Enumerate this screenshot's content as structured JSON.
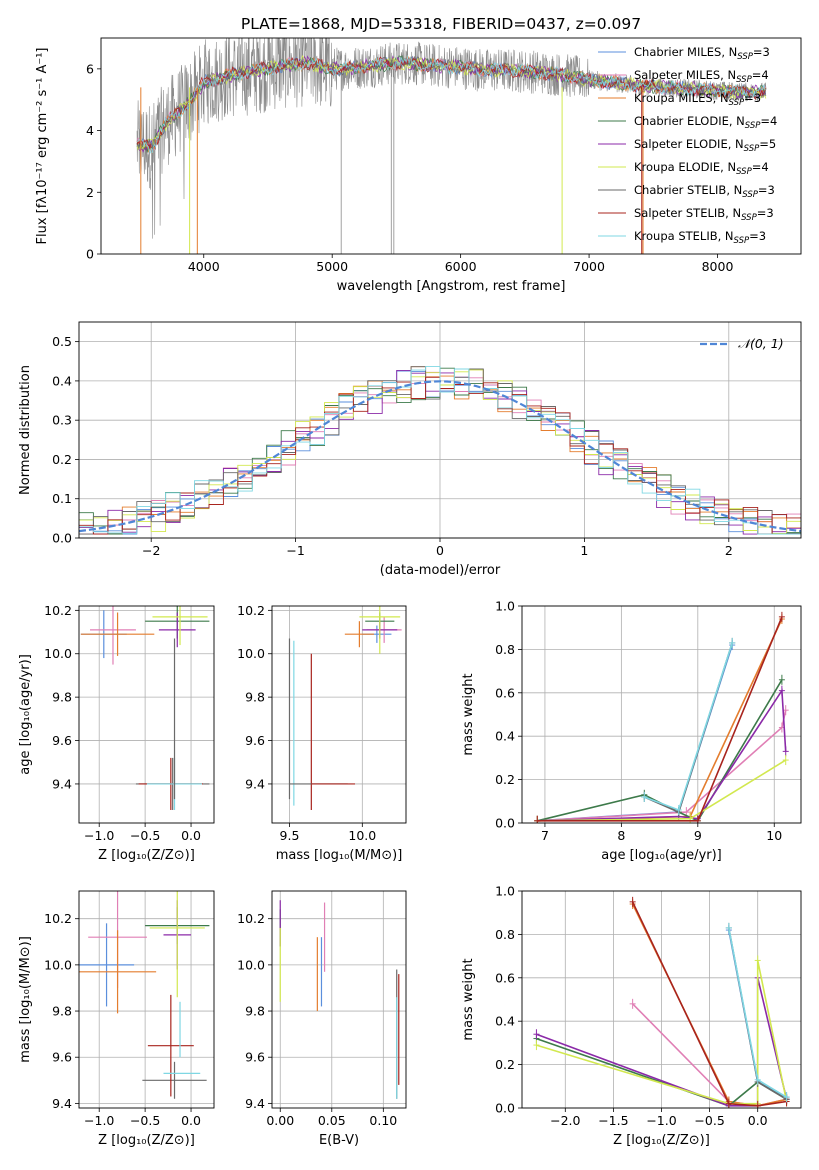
{
  "title": "PLATE=1868, MJD=53318, FIBERID=0437, z=0.097",
  "colors": {
    "Chabrier MILES": "#5b8fdc",
    "Salpeter MILES": "#e07fb5",
    "Kroupa MILES": "#e47d2e",
    "Chabrier ELODIE": "#3d7a4a",
    "Salpeter ELODIE": "#8b2aa8",
    "Kroupa ELODIE": "#d2e84f",
    "Chabrier STELIB": "#6a6a6a",
    "Salpeter STELIB": "#a8241e",
    "Kroupa STELIB": "#7fd7e3",
    "grid": "#b0b0b0",
    "gauss": "#4f86d6"
  },
  "chart_data": [
    {
      "id": "spectrum",
      "type": "line",
      "xlabel": "wavelength [Angstrom, rest frame]",
      "ylabel": "Flux [fλ10⁻¹⁷ erg cm⁻² s⁻¹ A⁻¹]",
      "xlim": [
        3200,
        8650
      ],
      "ylim": [
        0,
        7.0
      ],
      "xticks": [
        4000,
        5000,
        6000,
        7000,
        8000
      ],
      "yticks": [
        0,
        2,
        4,
        6
      ],
      "legend_position": "right",
      "legend": [
        "Chabrier MILES, N_SSP=3",
        "Salpeter MILES, N_SSP=4",
        "Kroupa MILES, N_SSP=3",
        "Chabrier ELODIE, N_SSP=4",
        "Salpeter ELODIE, N_SSP=5",
        "Kroupa ELODIE, N_SSP=4",
        "Chabrier STELIB, N_SSP=3",
        "Salpeter STELIB, N_SSP=3",
        "Kroupa STELIB, N_SSP=3"
      ],
      "model_continuum": {
        "x": [
          3500,
          3600,
          3700,
          3800,
          3900,
          4000,
          4200,
          4400,
          4600,
          4800,
          5000,
          5200,
          5400,
          5600,
          5800,
          6000,
          6200,
          6400,
          6600,
          6800,
          7000,
          7200,
          7400,
          7600,
          7800,
          8000,
          8200,
          8300
        ],
        "y": [
          3.55,
          3.5,
          4.2,
          4.6,
          5.0,
          5.55,
          5.8,
          5.95,
          6.1,
          6.2,
          6.0,
          6.05,
          6.15,
          6.2,
          6.1,
          6.05,
          5.95,
          5.95,
          5.9,
          5.8,
          5.65,
          5.55,
          5.45,
          5.4,
          5.35,
          5.3,
          5.25,
          5.25
        ]
      }
    },
    {
      "id": "residuals",
      "type": "step",
      "xlabel": "(data-model)/error",
      "ylabel": "Normed distribution",
      "xlim": [
        -2.5,
        2.5
      ],
      "ylim": [
        0,
        0.55
      ],
      "xticks": [
        -2,
        -1,
        0,
        1,
        2
      ],
      "yticks": [
        0.0,
        0.1,
        0.2,
        0.3,
        0.4,
        0.5
      ],
      "legend": [
        "𝒩(0, 1)"
      ],
      "legend_position": "top-right",
      "bin_width": 0.1
    },
    {
      "id": "age-vs-Z",
      "type": "errorbar",
      "xlabel": "Z [log₁₀(Z/Z⊙)]",
      "ylabel": "age  [log₁₀(age/yr)]",
      "xlim": [
        -1.22,
        0.25
      ],
      "ylim": [
        9.22,
        10.22
      ],
      "xticks": [
        -1.0,
        -0.5,
        0.0
      ],
      "yticks": [
        9.4,
        9.6,
        9.8,
        10.0,
        10.2
      ],
      "points": [
        {
          "model": "Chabrier MILES",
          "x": -0.95,
          "y": 10.09,
          "xerr": 0.25,
          "yerr": 0.11
        },
        {
          "model": "Salpeter MILES",
          "x": -0.85,
          "y": 10.11,
          "xerr": 0.25,
          "yerr": 0.16
        },
        {
          "model": "Kroupa MILES",
          "x": -0.8,
          "y": 10.09,
          "xerr": 0.4,
          "yerr": 0.1
        },
        {
          "model": "Chabrier ELODIE",
          "x": -0.15,
          "y": 10.15,
          "xerr": 0.35,
          "yerr": 0.08
        },
        {
          "model": "Salpeter ELODIE",
          "x": -0.15,
          "y": 10.11,
          "xerr": 0.2,
          "yerr": 0.08
        },
        {
          "model": "Kroupa ELODIE",
          "x": -0.12,
          "y": 10.17,
          "xerr": 0.3,
          "yerr": 0.13
        },
        {
          "model": "Chabrier STELIB",
          "x": -0.2,
          "y": 9.4,
          "xerr": 0.4,
          "yerr": 0.12
        },
        {
          "model": "Salpeter STELIB",
          "x": -0.22,
          "y": 9.4,
          "xerr": 0.35,
          "yerr": 0.12
        },
        {
          "model": "Kroupa STELIB",
          "x": -0.18,
          "y": 9.4,
          "xerr": 0.3,
          "yerr": 0.12
        },
        {
          "model": "Chabrier STELIB",
          "x": -0.18,
          "y": 9.7,
          "xerr": 0.0,
          "yerr": 0.37
        }
      ]
    },
    {
      "id": "age-vs-mass",
      "type": "errorbar",
      "xlabel": "mass [log₁₀(M/M⊙)]",
      "ylabel": "",
      "xlim": [
        9.38,
        10.3
      ],
      "ylim": [
        9.22,
        10.22
      ],
      "xticks": [
        9.5,
        10.0
      ],
      "yticks": [
        9.4,
        9.6,
        9.8,
        10.0,
        10.2
      ],
      "points": [
        {
          "model": "Chabrier MILES",
          "x": 10.1,
          "y": 10.09,
          "xerr": 0.1,
          "yerr": 0.04
        },
        {
          "model": "Salpeter MILES",
          "x": 10.15,
          "y": 10.11,
          "xerr": 0.12,
          "yerr": 0.06
        },
        {
          "model": "Kroupa MILES",
          "x": 9.98,
          "y": 10.09,
          "xerr": 0.1,
          "yerr": 0.06
        },
        {
          "model": "Chabrier ELODIE",
          "x": 10.12,
          "y": 10.15,
          "xerr": 0.1,
          "yerr": 0.04
        },
        {
          "model": "Salpeter ELODIE",
          "x": 10.12,
          "y": 10.11,
          "xerr": 0.12,
          "yerr": 0.04
        },
        {
          "model": "Kroupa ELODIE",
          "x": 10.12,
          "y": 10.17,
          "xerr": 0.14,
          "yerr": 0.17
        },
        {
          "model": "Chabrier STELIB",
          "x": 9.5,
          "y": 9.7,
          "xerr": 0.0,
          "yerr": 0.37
        },
        {
          "model": "Salpeter STELIB",
          "x": 9.65,
          "y": 9.64,
          "xerr": 0.0,
          "yerr": 0.36
        },
        {
          "model": "Kroupa STELIB",
          "x": 9.53,
          "y": 9.68,
          "xerr": 0.0,
          "yerr": 0.38
        },
        {
          "model": "Chabrier STELIB",
          "x": 9.7,
          "y": 9.4,
          "xerr": 0.2,
          "yerr": 0.0
        },
        {
          "model": "Salpeter STELIB",
          "x": 9.8,
          "y": 9.4,
          "xerr": 0.15,
          "yerr": 0.0
        }
      ]
    },
    {
      "id": "mass-weight-vs-age",
      "type": "line",
      "xlabel": "age  [log₁₀(age/yr)]",
      "ylabel": "mass weight",
      "xlim": [
        6.7,
        10.35
      ],
      "ylim": [
        0,
        1.0
      ],
      "xticks": [
        7,
        8,
        9,
        10
      ],
      "yticks": [
        0.0,
        0.2,
        0.4,
        0.6,
        0.8,
        1.0
      ],
      "series": [
        {
          "model": "Chabrier MILES",
          "x": [
            6.9,
            8.75,
            9.45
          ],
          "y": [
            0.01,
            0.05,
            0.82
          ]
        },
        {
          "model": "Salpeter MILES",
          "x": [
            6.9,
            8.85,
            10.1,
            10.15
          ],
          "y": [
            0.01,
            0.05,
            0.44,
            0.52
          ]
        },
        {
          "model": "Kroupa MILES",
          "x": [
            6.9,
            8.9,
            10.1
          ],
          "y": [
            0.01,
            0.03,
            0.94
          ]
        },
        {
          "model": "Chabrier ELODIE",
          "x": [
            6.9,
            8.3,
            8.75,
            9.0,
            10.1
          ],
          "y": [
            0.01,
            0.13,
            0.05,
            0.01,
            0.66
          ]
        },
        {
          "model": "Salpeter ELODIE",
          "x": [
            6.9,
            8.75,
            9.0,
            10.1,
            10.15
          ],
          "y": [
            0.01,
            0.03,
            0.02,
            0.61,
            0.33
          ]
        },
        {
          "model": "Kroupa ELODIE",
          "x": [
            6.9,
            8.9,
            10.15
          ],
          "y": [
            0.01,
            0.02,
            0.29
          ]
        },
        {
          "model": "Chabrier STELIB",
          "x": [
            8.3,
            8.75,
            9.45
          ],
          "y": [
            0.12,
            0.05,
            0.83
          ]
        },
        {
          "model": "Salpeter STELIB",
          "x": [
            6.9,
            9.0,
            10.1
          ],
          "y": [
            0.01,
            0.01,
            0.95
          ]
        },
        {
          "model": "Kroupa STELIB",
          "x": [
            8.3,
            8.75,
            9.45
          ],
          "y": [
            0.12,
            0.06,
            0.83
          ]
        }
      ]
    },
    {
      "id": "mass-vs-Z",
      "type": "errorbar",
      "xlabel": "Z [log₁₀(Z/Z⊙)]",
      "ylabel": "mass [log₁₀(M/M⊙)]",
      "xlim": [
        -1.22,
        0.25
      ],
      "ylim": [
        9.38,
        10.32
      ],
      "xticks": [
        -1.0,
        -0.5,
        0.0
      ],
      "yticks": [
        9.4,
        9.6,
        9.8,
        10.0,
        10.2
      ],
      "points": [
        {
          "model": "Chabrier MILES",
          "x": -0.92,
          "y": 10.0,
          "xerr": 0.3,
          "yerr": 0.18
        },
        {
          "model": "Salpeter MILES",
          "x": -0.8,
          "y": 10.12,
          "xerr": 0.32,
          "yerr": 0.22
        },
        {
          "model": "Kroupa MILES",
          "x": -0.8,
          "y": 9.97,
          "xerr": 0.42,
          "yerr": 0.18
        },
        {
          "model": "Chabrier ELODIE",
          "x": -0.15,
          "y": 10.17,
          "xerr": 0.35,
          "yerr": 0.08
        },
        {
          "model": "Salpeter ELODIE",
          "x": -0.15,
          "y": 10.13,
          "xerr": 0.15,
          "yerr": 0.15
        },
        {
          "model": "Kroupa ELODIE",
          "x": -0.15,
          "y": 10.16,
          "xerr": 0.3,
          "yerr": 0.3
        },
        {
          "model": "Chabrier STELIB",
          "x": -0.18,
          "y": 9.5,
          "xerr": 0.35,
          "yerr": 0.08
        },
        {
          "model": "Salpeter STELIB",
          "x": -0.22,
          "y": 9.65,
          "xerr": 0.25,
          "yerr": 0.22
        },
        {
          "model": "Kroupa STELIB",
          "x": -0.1,
          "y": 9.53,
          "xerr": 0.2,
          "yerr": 0.0
        },
        {
          "model": "Kroupa STELIB",
          "x": -0.12,
          "y": 9.72,
          "xerr": 0.0,
          "yerr": 0.12
        }
      ]
    },
    {
      "id": "mass-vs-ebv",
      "type": "errorbar",
      "xlabel": "E(B-V)",
      "ylabel": "",
      "xlim": [
        -0.008,
        0.122
      ],
      "ylim": [
        9.38,
        10.32
      ],
      "xticks": [
        0.0,
        0.05,
        0.1
      ],
      "yticks": [
        9.4,
        9.6,
        9.8,
        10.0,
        10.2
      ],
      "points": [
        {
          "model": "Chabrier MILES",
          "x": 0.04,
          "y": 9.97,
          "xerr": 0.0,
          "yerr": 0.15
        },
        {
          "model": "Salpeter MILES",
          "x": 0.043,
          "y": 10.12,
          "xerr": 0.0,
          "yerr": 0.15
        },
        {
          "model": "Kroupa MILES",
          "x": 0.036,
          "y": 9.96,
          "xerr": 0.0,
          "yerr": 0.16
        },
        {
          "model": "Chabrier ELODIE",
          "x": 0.0,
          "y": 10.16,
          "xerr": 0.0,
          "yerr": 0.08
        },
        {
          "model": "Salpeter ELODIE",
          "x": 0.0,
          "y": 10.18,
          "xerr": 0.0,
          "yerr": 0.1
        },
        {
          "model": "Kroupa ELODIE",
          "x": 0.0,
          "y": 10.0,
          "xerr": 0.0,
          "yerr": 0.16
        },
        {
          "model": "Chabrier STELIB",
          "x": 0.113,
          "y": 9.7,
          "xerr": 0.0,
          "yerr": 0.28
        },
        {
          "model": "Salpeter STELIB",
          "x": 0.115,
          "y": 9.72,
          "xerr": 0.0,
          "yerr": 0.24
        },
        {
          "model": "Kroupa STELIB",
          "x": 0.113,
          "y": 9.64,
          "xerr": 0.0,
          "yerr": 0.22
        }
      ]
    },
    {
      "id": "mass-weight-vs-Z",
      "type": "line",
      "xlabel": "Z [log₁₀(Z/Z⊙)]",
      "ylabel": "mass weight",
      "xlim": [
        -2.45,
        0.45
      ],
      "ylim": [
        0,
        1.0
      ],
      "xticks": [
        -2.0,
        -1.5,
        -1.0,
        -0.5,
        0.0
      ],
      "yticks": [
        0.0,
        0.2,
        0.4,
        0.6,
        0.8,
        1.0
      ],
      "series": [
        {
          "model": "Chabrier MILES",
          "x": [
            -0.3,
            0.0,
            0.3
          ],
          "y": [
            0.82,
            0.12,
            0.05
          ]
        },
        {
          "model": "Salpeter MILES",
          "x": [
            -1.3,
            -0.3,
            0.0,
            0.3
          ],
          "y": [
            0.48,
            0.03,
            0.01,
            0.04
          ]
        },
        {
          "model": "Kroupa MILES",
          "x": [
            -1.3,
            -0.3,
            0.0,
            0.3
          ],
          "y": [
            0.94,
            0.03,
            0.01,
            0.04
          ]
        },
        {
          "model": "Chabrier ELODIE",
          "x": [
            -2.3,
            -0.3,
            0.0,
            0.3
          ],
          "y": [
            0.32,
            0.01,
            0.12,
            0.04
          ]
        },
        {
          "model": "Salpeter ELODIE",
          "x": [
            -2.3,
            -0.3,
            0.0,
            0.0,
            0.3
          ],
          "y": [
            0.34,
            0.01,
            0.01,
            0.6,
            0.04
          ]
        },
        {
          "model": "Kroupa ELODIE",
          "x": [
            -2.3,
            -0.3,
            0.0,
            0.0,
            0.3
          ],
          "y": [
            0.29,
            0.02,
            0.02,
            0.68,
            0.03
          ]
        },
        {
          "model": "Chabrier STELIB",
          "x": [
            -0.3,
            0.0,
            0.3
          ],
          "y": [
            0.83,
            0.12,
            0.04
          ]
        },
        {
          "model": "Salpeter STELIB",
          "x": [
            -1.3,
            -0.3,
            0.0,
            0.3
          ],
          "y": [
            0.95,
            0.02,
            0.01,
            0.03
          ]
        },
        {
          "model": "Kroupa STELIB",
          "x": [
            -0.3,
            0.0,
            0.3
          ],
          "y": [
            0.83,
            0.13,
            0.05
          ]
        }
      ]
    }
  ]
}
